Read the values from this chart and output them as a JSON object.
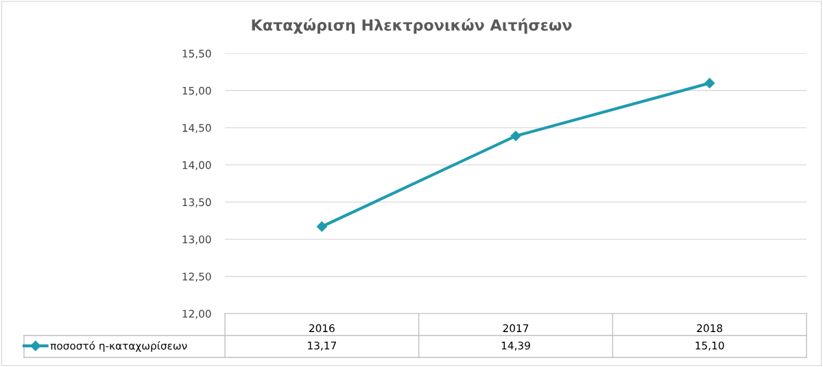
{
  "chart_data": {
    "type": "line",
    "title": "Καταχώριση Ηλεκτρονικών Αιτήσεων",
    "categories": [
      "2016",
      "2017",
      "2018"
    ],
    "series": [
      {
        "name": "ποσοστό η-καταχωρίσεων",
        "color": "#1f9bb0",
        "values": [
          13.17,
          14.39,
          15.1
        ],
        "value_labels": [
          "13,17",
          "14,39",
          "15,10"
        ]
      }
    ],
    "ylim": [
      12,
      15.5
    ],
    "yticks": [
      {
        "value": 12,
        "label": "12,00"
      },
      {
        "value": 12.5,
        "label": "12,50"
      },
      {
        "value": 13,
        "label": "13,00"
      },
      {
        "value": 13.5,
        "label": "13,50"
      },
      {
        "value": 14,
        "label": "14,00"
      },
      {
        "value": 14.5,
        "label": "14,50"
      },
      {
        "value": 15,
        "label": "15,00"
      },
      {
        "value": 15.5,
        "label": "15,50"
      }
    ],
    "grid": "y",
    "legend": "bottom left",
    "marker": "diamond",
    "line_style": "solid"
  }
}
